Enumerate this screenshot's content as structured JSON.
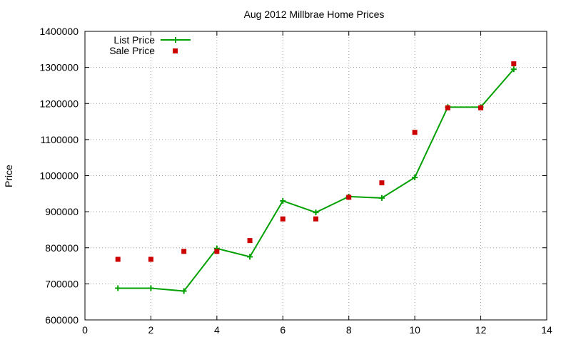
{
  "chart_data": {
    "type": "line",
    "title": "Aug 2012 Millbrae Home Prices",
    "xlabel": "",
    "ylabel": "Price",
    "xlim": [
      0,
      14
    ],
    "ylim": [
      600000,
      1400000
    ],
    "xticks": [
      "0",
      "2",
      "4",
      "6",
      "8",
      "10",
      "12",
      "14"
    ],
    "yticks": [
      "600000",
      "700000",
      "800000",
      "900000",
      "1000000",
      "1100000",
      "1200000",
      "1300000",
      "1400000"
    ],
    "grid": true,
    "legend_position": "top-left",
    "series": [
      {
        "name": "List Price",
        "style": "line-with-plus-markers",
        "color": "#00a000",
        "x": [
          1,
          2,
          3,
          4,
          5,
          6,
          7,
          8,
          9,
          10,
          11,
          12,
          13
        ],
        "y": [
          688000,
          688000,
          680000,
          798000,
          775000,
          930000,
          898000,
          942000,
          938000,
          995000,
          1190000,
          1190000,
          1295000
        ]
      },
      {
        "name": "Sale Price",
        "style": "square-markers",
        "color": "#cc0000",
        "x": [
          1,
          2,
          3,
          4,
          5,
          6,
          7,
          8,
          9,
          10,
          11,
          12,
          13
        ],
        "y": [
          768000,
          768000,
          790000,
          790000,
          820000,
          880000,
          880000,
          940000,
          980000,
          1120000,
          1188000,
          1188000,
          1310000
        ]
      }
    ]
  }
}
